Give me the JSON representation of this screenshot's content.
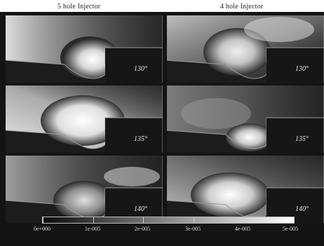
{
  "headers": {
    "left": "5 hole Injector",
    "right": "4 hole Injector"
  },
  "panels": [
    {
      "column": "5 hole Injector",
      "angle": "130°"
    },
    {
      "column": "4 hole Injector",
      "angle": "130°"
    },
    {
      "column": "5 hole Injector",
      "angle": "135°"
    },
    {
      "column": "4 hole Injector",
      "angle": "135°"
    },
    {
      "column": "5 hole Injector",
      "angle": "140°"
    },
    {
      "column": "4 hole Injector",
      "angle": "140°"
    }
  ],
  "colorbar": {
    "labels": [
      "0e+000",
      "1e-005",
      "2e-005",
      "3e-005",
      "4e-005",
      "5e-005"
    ],
    "colors": [
      "#0a0a0a",
      "#ffffff"
    ]
  }
}
